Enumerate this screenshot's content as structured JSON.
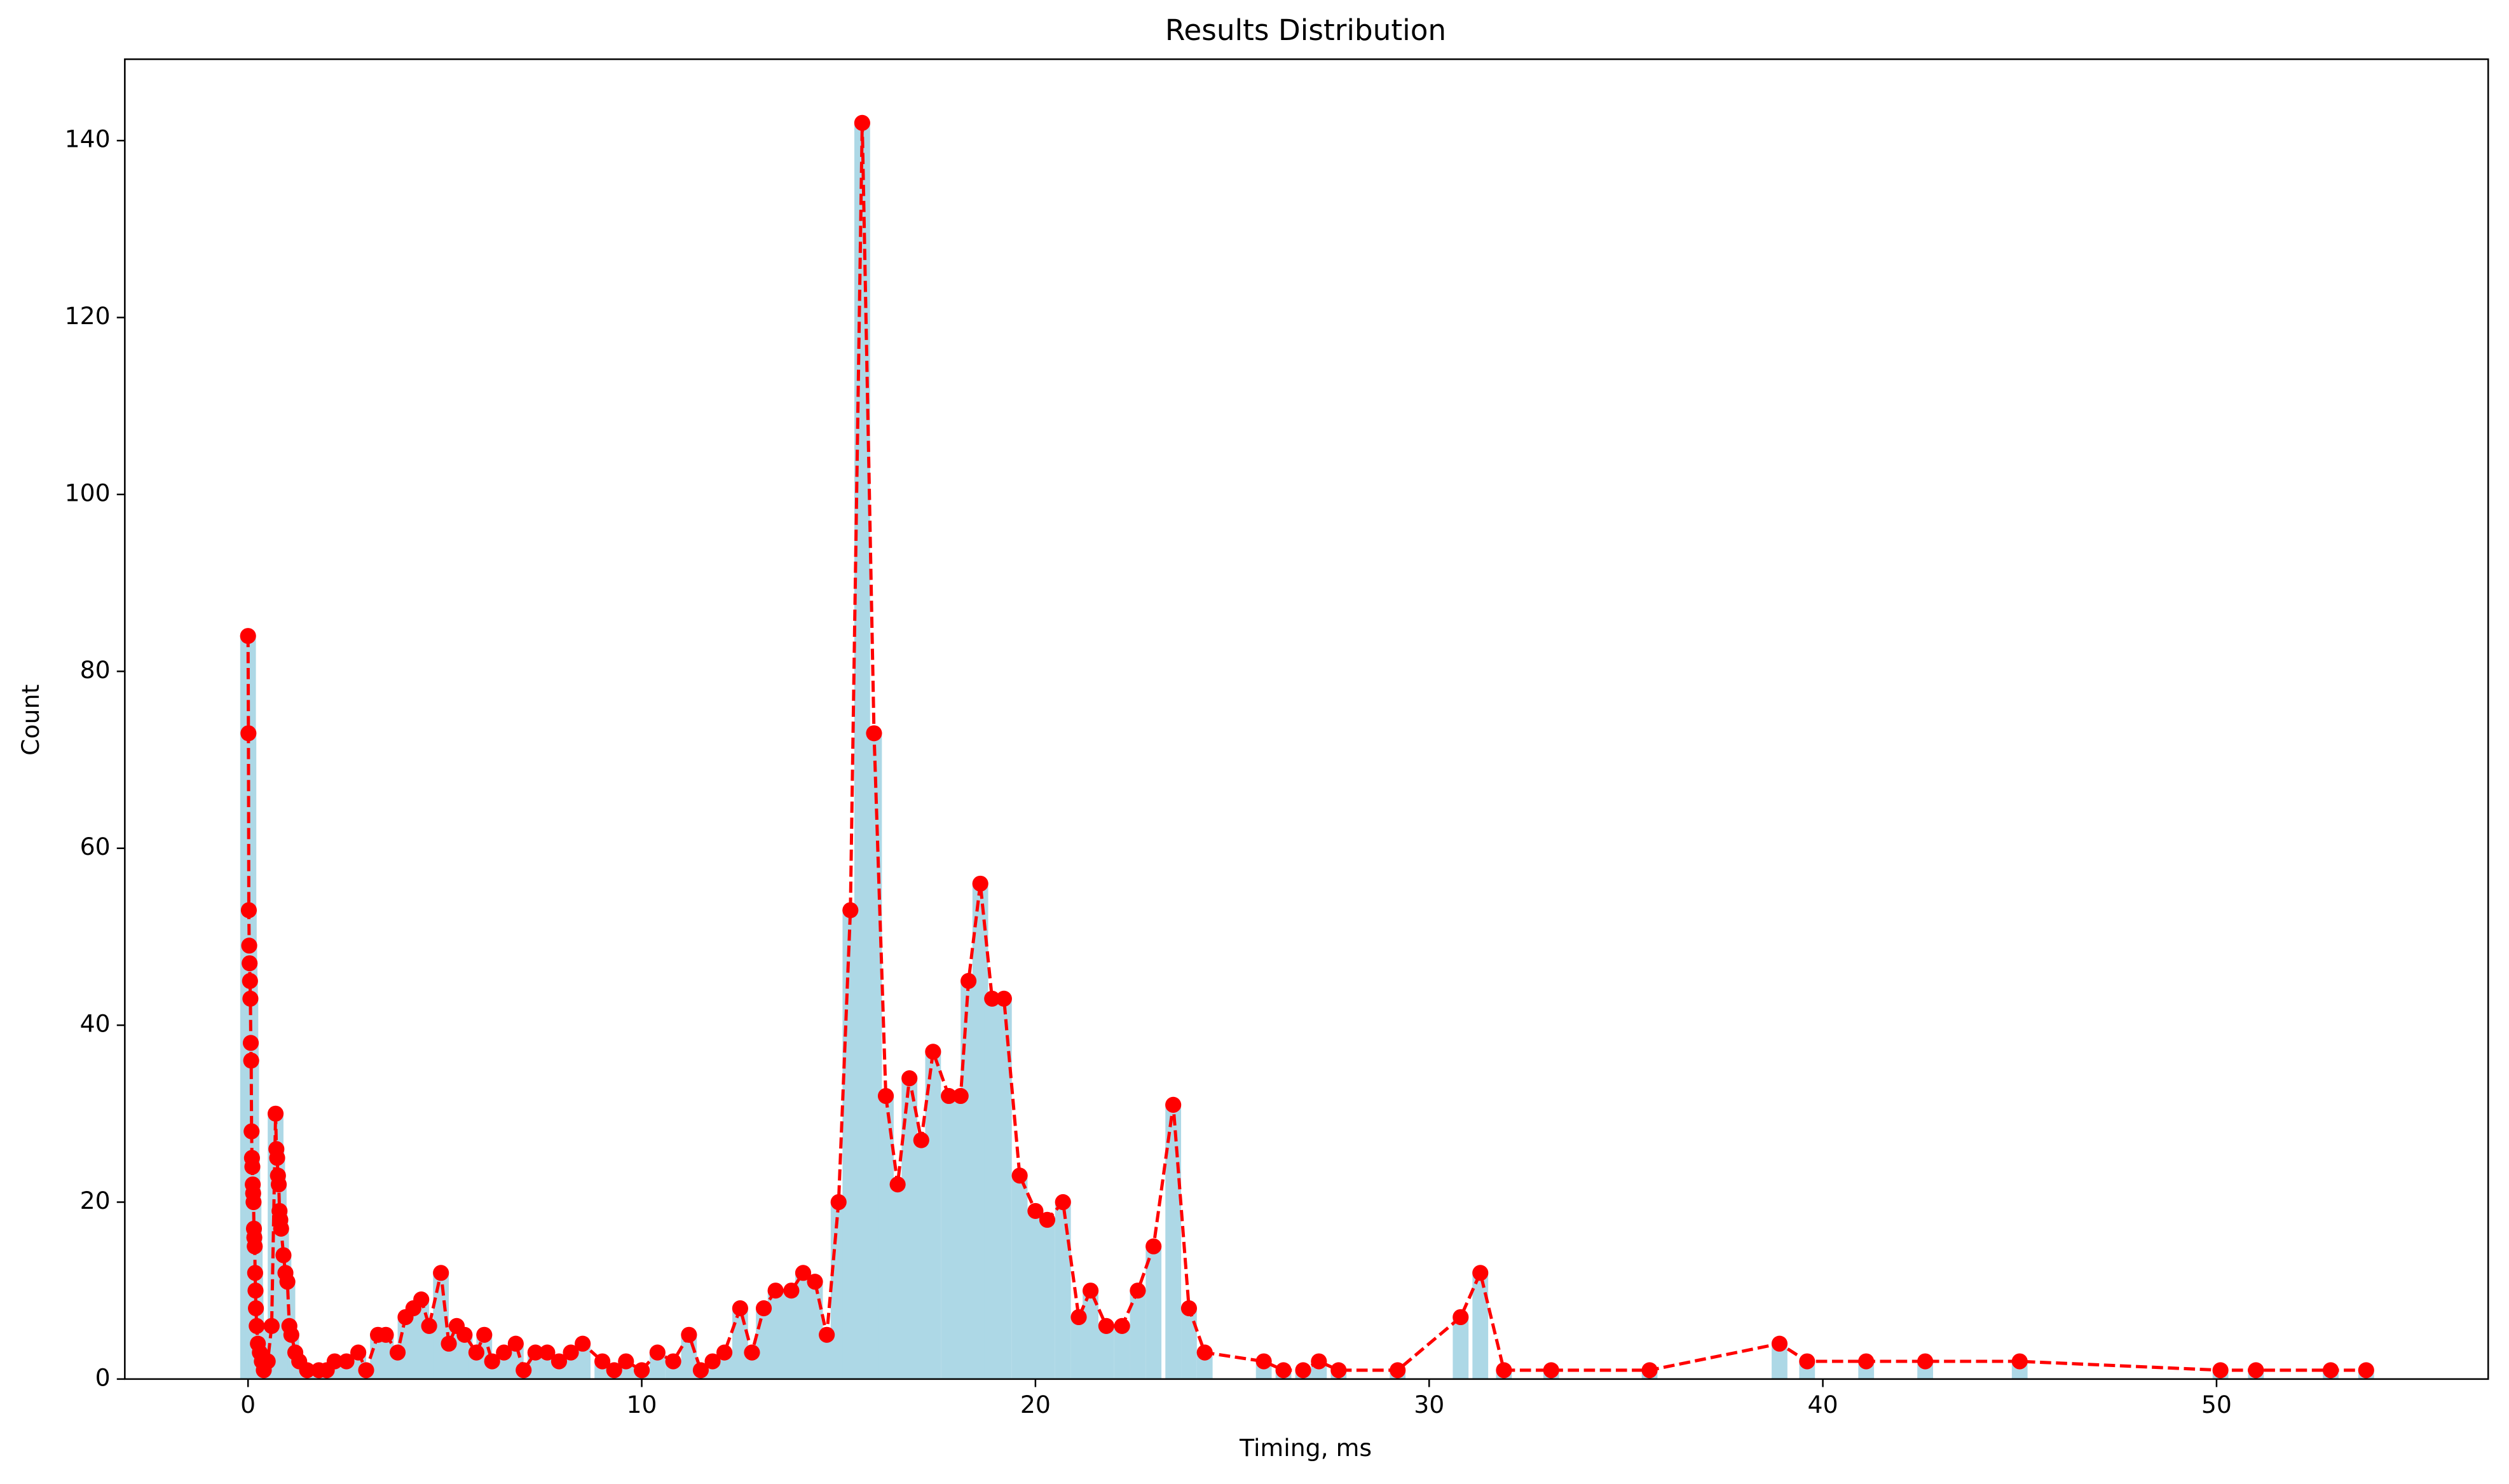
{
  "chart_data": {
    "type": "histogram",
    "title": "Results Distribution",
    "x_label": "Timing, ms",
    "y_label": "Count",
    "bar_color": "#add8e6",
    "line_color": "#ff0000",
    "line_style": "dashed",
    "grid": false,
    "x": [
      0.0,
      0.01,
      0.02,
      0.03,
      0.04,
      0.05,
      0.06,
      0.07,
      0.08,
      0.09,
      0.1,
      0.11,
      0.12,
      0.13,
      0.14,
      0.15,
      0.16,
      0.17,
      0.18,
      0.19,
      0.2,
      0.22,
      0.25,
      0.3,
      0.35,
      0.4,
      0.5,
      0.6,
      0.7,
      0.72,
      0.74,
      0.76,
      0.78,
      0.8,
      0.82,
      0.84,
      0.9,
      0.95,
      1.0,
      1.05,
      1.1,
      1.2,
      1.3,
      1.5,
      1.8,
      2.0,
      2.2,
      2.5,
      2.8,
      3.0,
      3.3,
      3.5,
      3.8,
      4.0,
      4.2,
      4.4,
      4.6,
      4.9,
      5.1,
      5.3,
      5.5,
      5.8,
      6.0,
      6.2,
      6.5,
      6.8,
      7.0,
      7.3,
      7.6,
      7.9,
      8.2,
      8.5,
      9.0,
      9.3,
      9.6,
      10.0,
      10.4,
      10.8,
      11.2,
      11.5,
      11.8,
      12.1,
      12.5,
      12.8,
      13.1,
      13.4,
      13.8,
      14.1,
      14.4,
      14.7,
      15.0,
      15.3,
      15.6,
      15.9,
      16.2,
      16.5,
      16.8,
      17.1,
      17.4,
      17.8,
      18.1,
      18.3,
      18.6,
      18.9,
      19.2,
      19.6,
      20.0,
      20.3,
      20.7,
      21.1,
      21.4,
      21.8,
      22.2,
      22.6,
      23.0,
      23.5,
      23.9,
      24.3,
      25.8,
      26.3,
      26.8,
      27.2,
      27.7,
      29.2,
      30.8,
      31.3,
      31.9,
      33.1,
      35.6,
      38.9,
      39.6,
      41.1,
      42.6,
      45.0,
      50.1,
      51.0,
      52.9,
      53.8
    ],
    "values": [
      84,
      73,
      53,
      49,
      47,
      45,
      43,
      38,
      36,
      28,
      25,
      24,
      22,
      21,
      20,
      17,
      16,
      15,
      12,
      10,
      8,
      6,
      4,
      3,
      2,
      1,
      2,
      6,
      30,
      26,
      25,
      23,
      22,
      19,
      18,
      17,
      14,
      12,
      11,
      6,
      5,
      3,
      2,
      1,
      1,
      1,
      2,
      2,
      3,
      1,
      5,
      5,
      3,
      7,
      8,
      9,
      6,
      12,
      4,
      6,
      5,
      3,
      5,
      2,
      3,
      4,
      1,
      3,
      3,
      2,
      3,
      4,
      2,
      1,
      2,
      1,
      3,
      2,
      5,
      1,
      2,
      3,
      8,
      3,
      8,
      10,
      10,
      12,
      11,
      5,
      20,
      53,
      142,
      73,
      32,
      22,
      34,
      27,
      37,
      32,
      32,
      45,
      56,
      43,
      43,
      23,
      19,
      18,
      20,
      7,
      10,
      6,
      6,
      10,
      15,
      31,
      8,
      3,
      2,
      1,
      1,
      2,
      1,
      1,
      7,
      12,
      1,
      1,
      1,
      4,
      2,
      2,
      2,
      2,
      1,
      1,
      1,
      1
    ],
    "xlim": [
      -3.13,
      56.9
    ],
    "ylim": [
      0,
      149.2
    ],
    "xticks": [
      0,
      10,
      20,
      30,
      40,
      50
    ],
    "yticks": [
      0,
      20,
      40,
      60,
      80,
      100,
      120,
      140
    ]
  }
}
